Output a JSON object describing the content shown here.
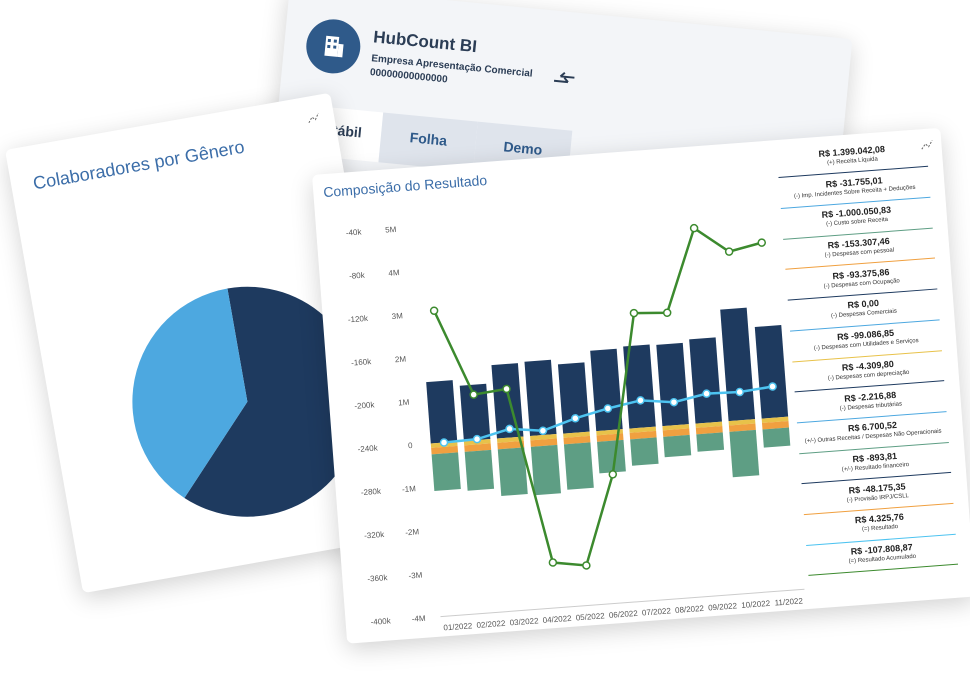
{
  "header": {
    "app_name": "HubCount BI",
    "company": "Empresa Apresentação Comercial",
    "id": "00000000000000",
    "tabs": [
      "Contábil",
      "Folha",
      "Demo"
    ]
  },
  "pie_card": {
    "title": "Colaboradores por Gênero",
    "chart": {
      "type": "pie",
      "values": [
        62,
        38
      ],
      "colors": [
        "#1e3a5f",
        "#4da8e0"
      ]
    }
  },
  "result_card": {
    "title": "Composição do Resultado",
    "chart": {
      "type": "bar",
      "categories": [
        "01/2022",
        "02/2022",
        "03/2022",
        "04/2022",
        "05/2022",
        "06/2022",
        "07/2022",
        "08/2022",
        "09/2022",
        "10/2022",
        "11/2022"
      ],
      "ylim": [
        -4000000,
        5000000
      ],
      "yticks": [
        {
          "value": 5000000,
          "label": "5M"
        },
        {
          "value": 4000000,
          "label": "4M"
        },
        {
          "value": 3000000,
          "label": "3M"
        },
        {
          "value": 2000000,
          "label": "2M"
        },
        {
          "value": 1000000,
          "label": "1M"
        },
        0,
        {
          "value": -1000000,
          "label": "-1M"
        },
        {
          "value": -2000000,
          "label": "-2M"
        },
        {
          "value": -3000000,
          "label": "-3M"
        },
        {
          "value": -4000000,
          "label": "-4M"
        }
      ],
      "y2lim": [
        -400000,
        -40000
      ],
      "y2ticks": [
        {
          "value": -40000,
          "label": "-40k"
        },
        {
          "value": -80000,
          "label": "-80k"
        },
        {
          "value": -120000,
          "label": "-120k"
        },
        {
          "value": -160000,
          "label": "-160k"
        },
        {
          "value": -200000,
          "label": "-200k"
        },
        {
          "value": -240000,
          "label": "-240k"
        },
        {
          "value": -280000,
          "label": "-280k"
        },
        {
          "value": -320000,
          "label": "-320k"
        },
        {
          "value": -360000,
          "label": "-360k"
        },
        {
          "value": -400000,
          "label": "-400k"
        }
      ],
      "series": [
        {
          "color": "#1e3a5f",
          "values": [
            1420000,
            1280000,
            1700000,
            1720000,
            1600000,
            1860000,
            1900000,
            1880000,
            1950000,
            2580000,
            2120000
          ]
        },
        {
          "color": "#e8c24a",
          "values": [
            -100000,
            -100000,
            -100000,
            -100000,
            -100000,
            -100000,
            -100000,
            -100000,
            -100000,
            -100000,
            -100000
          ]
        },
        {
          "color": "#f0a040",
          "values": [
            -150000,
            -150000,
            -150000,
            -150000,
            -150000,
            -150000,
            -150000,
            -150000,
            -150000,
            -150000,
            -150000
          ]
        },
        {
          "color": "#5e9e84",
          "values": [
            -850000,
            -900000,
            -1080000,
            -1120000,
            -1050000,
            -730000,
            -610000,
            -470000,
            -400000,
            -1050000,
            -420000
          ]
        },
        {
          "type": "line",
          "color": "#4dc3f0",
          "values": [
            0,
            20000,
            200000,
            100000,
            330000,
            500000,
            630000,
            530000,
            670000,
            650000,
            720000
          ]
        },
        {
          "type": "line",
          "color": "#3c8a2e",
          "axis": "y2",
          "values": [
            -118000,
            -198000,
            -195000,
            -358000,
            -363000,
            -281000,
            -134000,
            -136000,
            -60000,
            -84000,
            -78000
          ]
        }
      ]
    }
  },
  "summary": {
    "items": [
      {
        "value": "R$ 1.399.042,08",
        "label": "(+) Receita Líquida",
        "color": "#1e3a5f"
      },
      {
        "value": "R$ -31.755,01",
        "label": "(-) Imp. Incidentes Sobre Receita + Deduções",
        "color": "#4da8e0"
      },
      {
        "value": "R$ -1.000.050,83",
        "label": "(-) Custo sobre Receita",
        "color": "#5e9e84"
      },
      {
        "value": "R$ -153.307,46",
        "label": "(-) Despesas com pessoal",
        "color": "#f0a040"
      },
      {
        "value": "R$ -93.375,86",
        "label": "(-) Despesas com Ocupação",
        "color": "#1e3a5f"
      },
      {
        "value": "R$ 0,00",
        "label": "(-) Despesas Comerciais",
        "color": "#4da8e0"
      },
      {
        "value": "R$ -99.086,85",
        "label": "(-) Despesas com Utilidades e Serviços",
        "color": "#e8c24a"
      },
      {
        "value": "R$ -4.309,80",
        "label": "(-) Despesas com depreciação",
        "color": "#1e3a5f"
      },
      {
        "value": "R$ -2.216,88",
        "label": "(-) Despesas tributárias",
        "color": "#4da8e0"
      },
      {
        "value": "R$ 6.700,52",
        "label": "(+/-) Outras Receitas / Despesas Não Operacionais",
        "color": "#5e9e84"
      },
      {
        "value": "R$ -893,81",
        "label": "(+/-) Resultado financeiro",
        "color": "#1e3a5f"
      },
      {
        "value": "R$ -48.175,35",
        "label": "(-) Provisão IRPJ/CSLL",
        "color": "#f0a040"
      },
      {
        "value": "R$ 4.325,76",
        "label": "(=) Resultado",
        "color": "#4dc3f0"
      },
      {
        "value": "R$ -107.808,87",
        "label": "(=) Resultado Acumulado",
        "color": "#3c8a2e"
      }
    ]
  }
}
